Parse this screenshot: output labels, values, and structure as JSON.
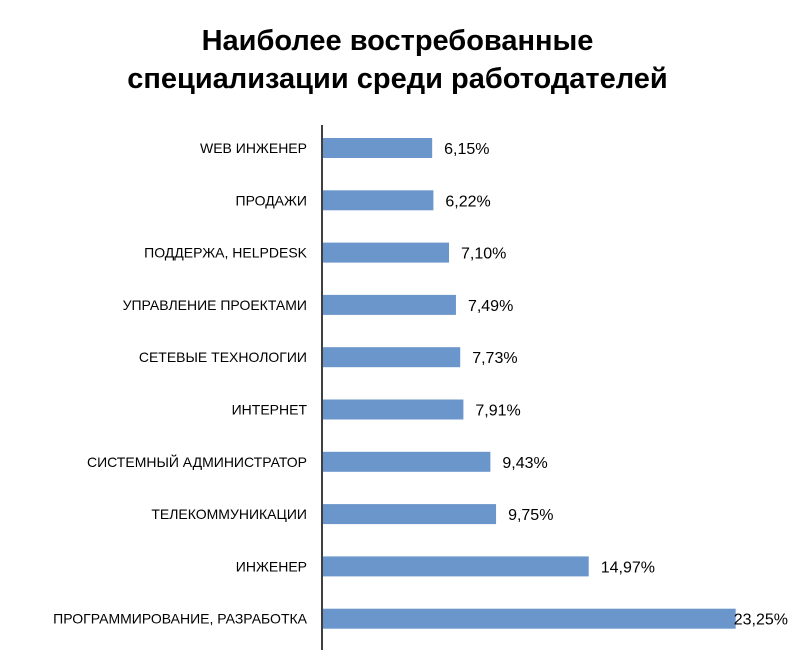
{
  "chart_data": {
    "type": "bar",
    "orientation": "horizontal",
    "title_line1": "Наиболее востребованные",
    "title_line2": "специализации среди работодателей",
    "categories": [
      "WEB ИНЖЕНЕР",
      "ПРОДАЖИ",
      "ПОДДЕРЖА, HELPDESK",
      "УПРАВЛЕНИЕ ПРОЕКТАМИ",
      "СЕТЕВЫЕ ТЕХНОЛОГИИ",
      "ИНТЕРНЕТ",
      "СИСТЕМНЫЙ АДМИНИСТРАТОР",
      "ТЕЛЕКОММУНИКАЦИИ",
      "ИНЖЕНЕР",
      "ПРОГРАММИРОВАНИЕ, РАЗРАБОТКА"
    ],
    "values": [
      6.15,
      6.22,
      7.1,
      7.49,
      7.73,
      7.91,
      9.43,
      9.75,
      14.97,
      23.25
    ],
    "data_labels": [
      "6,15%",
      "6,22%",
      "7,10%",
      "7,49%",
      "7,73%",
      "7,91%",
      "9,43%",
      "9,75%",
      "14,97%",
      "23,25%"
    ],
    "bar_color": "#6B96CB",
    "grid": false,
    "legend": "none"
  }
}
